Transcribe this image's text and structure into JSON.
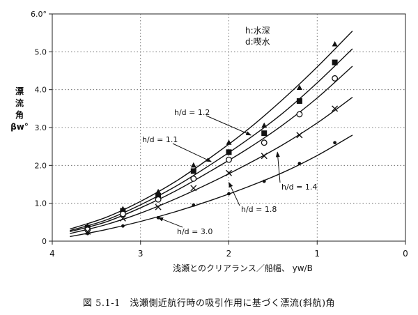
{
  "chart_data": {
    "type": "scatter",
    "xlabel": "浅瀬とのクリアランス／船幅、 yw/B",
    "ylabel_lines": [
      "漂",
      "流",
      "角",
      "βw°"
    ],
    "xlim": [
      4,
      0
    ],
    "ylim": [
      0,
      6.0
    ],
    "x_ticks": [
      "4",
      "3",
      "2",
      "1",
      "0"
    ],
    "y_ticks": [
      "0",
      "1.0",
      "2.0",
      "3.0",
      "4.0",
      "5.0",
      "6.0°"
    ],
    "grid": true,
    "legend_lines": [
      "h:水深",
      "d:喫水"
    ],
    "series": [
      {
        "name": "h/d = 1.2",
        "marker": "triangle",
        "points": [
          [
            3.6,
            0.4
          ],
          [
            3.2,
            0.85
          ],
          [
            2.8,
            1.3
          ],
          [
            2.4,
            2.0
          ],
          [
            2.0,
            2.6
          ],
          [
            1.6,
            3.05
          ],
          [
            1.2,
            4.05
          ],
          [
            0.8,
            5.2
          ]
        ],
        "curve": [
          [
            3.8,
            0.32
          ],
          [
            3.4,
            0.62
          ],
          [
            3.0,
            1.05
          ],
          [
            2.6,
            1.58
          ],
          [
            2.2,
            2.22
          ],
          [
            1.8,
            2.92
          ],
          [
            1.4,
            3.72
          ],
          [
            1.0,
            4.6
          ],
          [
            0.6,
            5.55
          ]
        ]
      },
      {
        "name": "h/d = 1.1",
        "marker": "square",
        "points": [
          [
            3.6,
            0.35
          ],
          [
            3.2,
            0.8
          ],
          [
            2.8,
            1.2
          ],
          [
            2.4,
            1.85
          ],
          [
            2.0,
            2.35
          ],
          [
            1.6,
            2.85
          ],
          [
            1.2,
            3.7
          ],
          [
            0.8,
            4.72
          ]
        ],
        "curve": [
          [
            3.8,
            0.28
          ],
          [
            3.4,
            0.55
          ],
          [
            3.0,
            0.96
          ],
          [
            2.6,
            1.45
          ],
          [
            2.2,
            2.03
          ],
          [
            1.8,
            2.66
          ],
          [
            1.4,
            3.36
          ],
          [
            1.0,
            4.18
          ],
          [
            0.6,
            5.08
          ]
        ]
      },
      {
        "name": "",
        "marker": "circle",
        "points": [
          [
            3.6,
            0.3
          ],
          [
            3.2,
            0.72
          ],
          [
            2.8,
            1.1
          ],
          [
            2.4,
            1.65
          ],
          [
            2.0,
            2.15
          ],
          [
            1.6,
            2.6
          ],
          [
            1.2,
            3.35
          ],
          [
            0.8,
            4.3
          ]
        ],
        "curve": [
          [
            3.8,
            0.25
          ],
          [
            3.4,
            0.5
          ],
          [
            3.0,
            0.88
          ],
          [
            2.6,
            1.33
          ],
          [
            2.2,
            1.86
          ],
          [
            1.8,
            2.42
          ],
          [
            1.4,
            3.05
          ],
          [
            1.0,
            3.78
          ],
          [
            0.6,
            4.62
          ]
        ]
      },
      {
        "name": "h/d = 1.4",
        "marker": "x",
        "points": [
          [
            3.6,
            0.25
          ],
          [
            3.2,
            0.6
          ],
          [
            2.8,
            0.9
          ],
          [
            2.4,
            1.4
          ],
          [
            2.0,
            1.8
          ],
          [
            1.6,
            2.25
          ],
          [
            1.2,
            2.8
          ],
          [
            0.8,
            3.5
          ]
        ],
        "curve": [
          [
            3.8,
            0.2
          ],
          [
            3.4,
            0.43
          ],
          [
            3.0,
            0.74
          ],
          [
            2.6,
            1.12
          ],
          [
            2.2,
            1.55
          ],
          [
            1.8,
            2.02
          ],
          [
            1.4,
            2.53
          ],
          [
            1.0,
            3.12
          ],
          [
            0.6,
            3.8
          ]
        ]
      },
      {
        "name": "h/d = 3.0",
        "marker": "dot",
        "points": [
          [
            3.6,
            0.2
          ],
          [
            3.2,
            0.4
          ],
          [
            2.8,
            0.62
          ],
          [
            2.4,
            0.95
          ],
          [
            2.0,
            1.25
          ],
          [
            1.6,
            1.58
          ],
          [
            1.2,
            2.05
          ],
          [
            0.8,
            2.6
          ]
        ],
        "curve": [
          [
            3.8,
            0.12
          ],
          [
            3.4,
            0.3
          ],
          [
            3.0,
            0.52
          ],
          [
            2.6,
            0.78
          ],
          [
            2.2,
            1.08
          ],
          [
            1.8,
            1.42
          ],
          [
            1.4,
            1.8
          ],
          [
            1.0,
            2.26
          ],
          [
            0.6,
            2.8
          ]
        ]
      }
    ],
    "annotations": [
      {
        "text": "h/d = 1.2",
        "target": [
          1.75,
          2.8
        ]
      },
      {
        "text": "h/d = 1.1",
        "target": [
          2.2,
          2.1
        ]
      },
      {
        "text": "h/d = 1.4",
        "target": [
          1.45,
          2.35
        ]
      },
      {
        "text": "h/d = 1.8",
        "target": [
          2.0,
          1.55
        ]
      },
      {
        "text": "h/d = 3.0",
        "target": [
          2.8,
          0.62
        ]
      }
    ]
  },
  "caption": "図 5.1-1　浅瀬側近航行時の吸引作用に基づく漂流(斜航)角"
}
